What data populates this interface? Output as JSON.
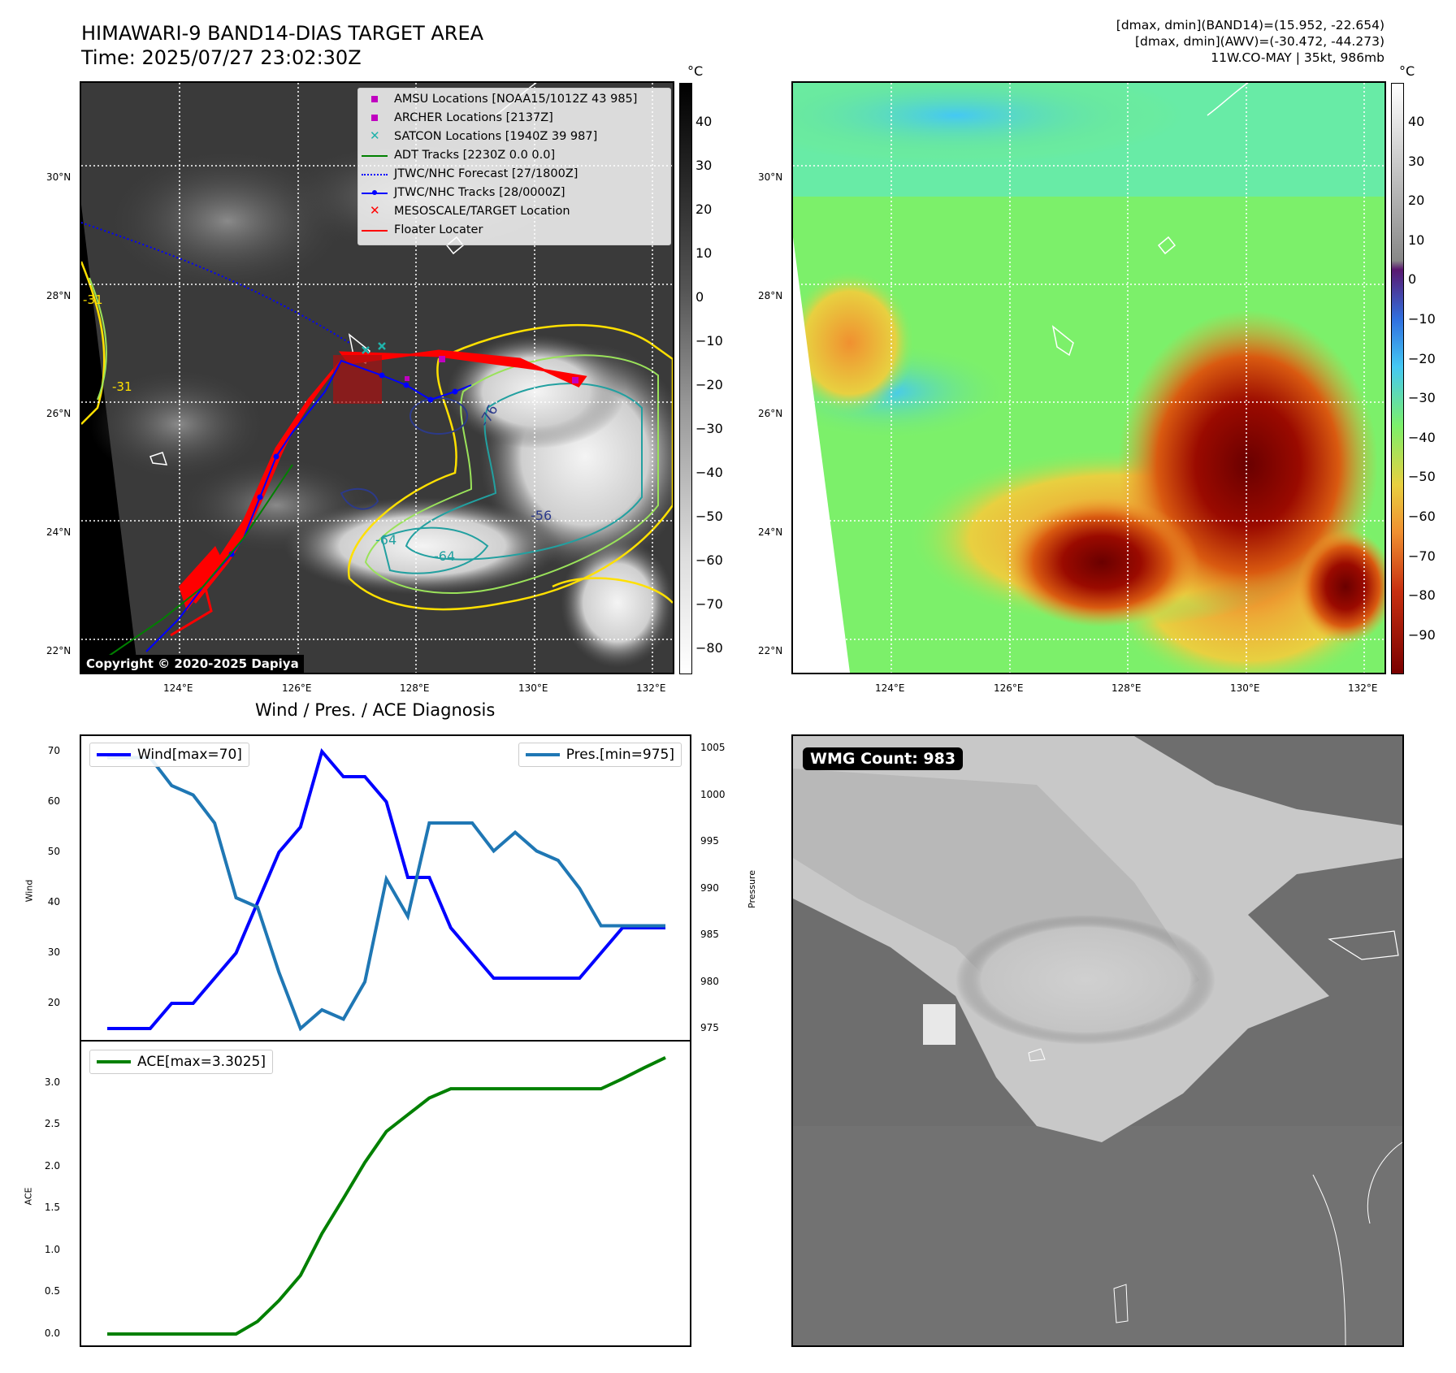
{
  "header": {
    "title_line1": "HIMAWARI-9 BAND14-DIAS TARGET AREA",
    "title_line2": "Time: 2025/07/27 23:02:30Z",
    "right_line1": "[dmax, dmin](BAND14)=(15.952, -22.654)",
    "right_line2": "[dmax, dmin](AWV)=(-30.472, -44.273)",
    "right_line3": "11W.CO-MAY | 35kt, 986mb"
  },
  "map": {
    "lat_ticks": [
      "30°N",
      "28°N",
      "26°N",
      "24°N",
      "22°N"
    ],
    "lon_ticks": [
      "124°E",
      "126°E",
      "128°E",
      "130°E",
      "132°E"
    ],
    "copyright": "Copyright © 2020-2025 Dapiya",
    "contour_labels": [
      "-76",
      "-64",
      "-64",
      "-56",
      "-31",
      "-31"
    ],
    "colorbar_unit": "°C",
    "colorbar_ticks_gray": [
      "40",
      "30",
      "20",
      "10",
      "0",
      "−10",
      "−20",
      "−30",
      "−40",
      "−50",
      "−60",
      "−70",
      "−80"
    ],
    "colorbar_ticks_color": [
      "40",
      "30",
      "20",
      "10",
      "0",
      "−10",
      "−20",
      "−30",
      "−40",
      "−50",
      "−60",
      "−70",
      "−80",
      "−90"
    ],
    "colors": {
      "cold_core": "#7a0000",
      "warm": "#e8861a",
      "mid": "#7cf06a",
      "cool": "#44c8f4"
    }
  },
  "legend": {
    "items": [
      {
        "label": "AMSU Locations [NOAA15/1012Z 43 985]",
        "icon": "magenta-square",
        "color": "#c000c0"
      },
      {
        "label": "ARCHER Locations [2137Z]",
        "icon": "magenta-square",
        "color": "#c000c0"
      },
      {
        "label": "SATCON Locations [1940Z 39 987]",
        "icon": "cyan-x",
        "color": "#20b2aa"
      },
      {
        "label": "ADT Tracks [2230Z 0.0 0.0]",
        "icon": "green-line",
        "color": "#008000"
      },
      {
        "label": "JTWC/NHC Forecast [27/1800Z]",
        "icon": "blue-dotted-line",
        "color": "#0000ff"
      },
      {
        "label": "JTWC/NHC Tracks [28/0000Z]",
        "icon": "blue-dot-line",
        "color": "#0000ff"
      },
      {
        "label": "MESOSCALE/TARGET Location",
        "icon": "red-x",
        "color": "#ff0000"
      },
      {
        "label": "Floater Locater",
        "icon": "red-line",
        "color": "#ff0000"
      }
    ]
  },
  "diag": {
    "title": "Wind / Pres. / ACE Diagnosis",
    "wind_legend": "Wind[max=70]",
    "pres_legend": "Pres.[min=975]",
    "ace_legend": "ACE[max=3.3025]",
    "wind_ylabel": "Wind",
    "pres_ylabel": "Pressure",
    "ace_ylabel": "ACE",
    "wind_color": "#0000ff",
    "pres_color": "#1f77b4",
    "ace_color": "#008000"
  },
  "wmg": {
    "badge": "WMG Count: 983"
  },
  "chart_data": [
    {
      "type": "line",
      "title": "Wind / Pres. / ACE Diagnosis",
      "x": [
        0,
        1,
        2,
        3,
        4,
        5,
        6,
        7,
        8,
        9,
        10,
        11,
        12,
        13,
        14,
        15,
        16,
        17,
        18,
        19,
        20,
        21,
        22,
        23,
        24,
        25,
        26
      ],
      "series": [
        {
          "name": "Wind[max=70]",
          "axis": "left",
          "ylabel": "Wind",
          "values": [
            15,
            15,
            15,
            20,
            20,
            25,
            30,
            40,
            50,
            55,
            70,
            65,
            65,
            60,
            45,
            45,
            35,
            30,
            25,
            25,
            25,
            25,
            25,
            30,
            35,
            35,
            35
          ]
        },
        {
          "name": "Pres.[min=975]",
          "axis": "right",
          "ylabel": "Pressure",
          "values": [
            1004,
            1004,
            1004,
            1001,
            1000,
            997,
            989,
            988,
            981,
            975,
            977,
            976,
            980,
            991,
            987,
            997,
            997,
            997,
            994,
            996,
            994,
            993,
            990,
            986,
            986,
            986,
            986
          ]
        }
      ],
      "ylim_left": [
        15,
        70
      ],
      "ylim_right": [
        975,
        1005
      ],
      "left_ticks": [
        20,
        30,
        40,
        50,
        60,
        70
      ],
      "right_ticks": [
        975,
        980,
        985,
        990,
        995,
        1000,
        1005
      ]
    },
    {
      "type": "line",
      "x": [
        0,
        1,
        2,
        3,
        4,
        5,
        6,
        7,
        8,
        9,
        10,
        11,
        12,
        13,
        14,
        15,
        16,
        17,
        18,
        19,
        20,
        21,
        22,
        23,
        24,
        25,
        26
      ],
      "series": [
        {
          "name": "ACE[max=3.3025]",
          "ylabel": "ACE",
          "values": [
            0,
            0,
            0,
            0,
            0,
            0,
            0,
            0.15,
            0.4,
            0.7,
            1.2,
            1.62,
            2.05,
            2.42,
            2.62,
            2.82,
            2.93,
            2.93,
            2.93,
            2.93,
            2.93,
            2.93,
            2.93,
            2.93,
            3.05,
            3.18,
            3.3025
          ]
        }
      ],
      "ylim": [
        0,
        3.3025
      ],
      "ticks": [
        0.0,
        0.5,
        1.0,
        1.5,
        2.0,
        2.5,
        3.0
      ]
    }
  ]
}
